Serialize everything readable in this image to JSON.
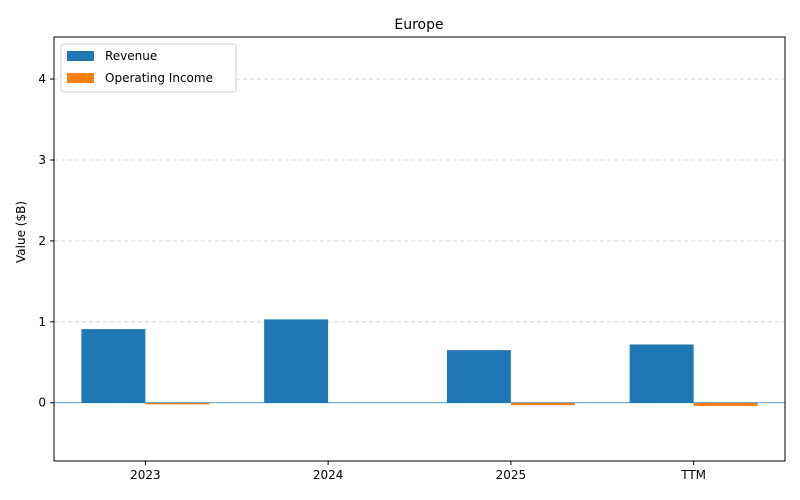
{
  "chart_data": {
    "type": "bar",
    "title": "Europe",
    "xlabel": "",
    "ylabel": "Value ($B)",
    "categories": [
      "2023",
      "2024",
      "2025",
      "TTM"
    ],
    "series": [
      {
        "name": "Revenue",
        "values": [
          0.91,
          1.03,
          0.65,
          0.72
        ],
        "color": "#1f77b4"
      },
      {
        "name": "Operating Income",
        "values": [
          -0.02,
          0.0,
          -0.03,
          -0.04
        ],
        "color": "#ff7f0e"
      }
    ],
    "ylim": [
      -0.72,
      4.52
    ],
    "yticks": [
      0,
      1,
      2,
      3,
      4
    ],
    "grid": true,
    "legend_position": "top-left",
    "zero_line_color": "#1f77b4"
  }
}
